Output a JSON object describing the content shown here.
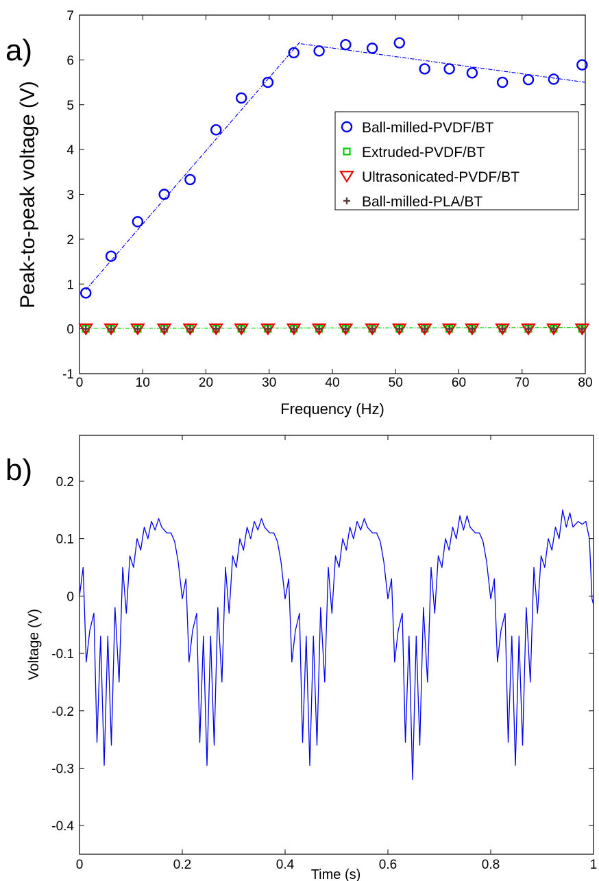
{
  "chart_data": [
    {
      "panel_label": "a)",
      "type": "scatter",
      "xlabel": "Frequency (Hz)",
      "ylabel": "Peak-to-peak voltage (V)",
      "xlim": [
        0,
        80
      ],
      "ylim": [
        -1,
        7
      ],
      "xticks": [
        "0",
        "10",
        "20",
        "30",
        "40",
        "50",
        "60",
        "70",
        "80"
      ],
      "yticks": [
        "-1",
        "0",
        "1",
        "2",
        "3",
        "4",
        "5",
        "6",
        "7"
      ],
      "x": [
        1,
        5,
        9.2,
        13.4,
        17.5,
        21.6,
        25.6,
        29.8,
        33.9,
        37.9,
        42.1,
        46.3,
        50.6,
        54.6,
        58.5,
        62.1,
        66.9,
        71,
        75,
        79.5
      ],
      "legend_position": "center-right",
      "series": [
        {
          "name": "Ball-milled-PVDF/BT",
          "marker": "circle",
          "color": "#0000ee",
          "values": [
            0.8,
            1.62,
            2.39,
            3.0,
            3.33,
            4.44,
            5.15,
            5.5,
            6.16,
            6.2,
            6.34,
            6.26,
            6.38,
            5.8,
            5.8,
            5.71,
            5.5,
            5.56,
            5.57,
            5.89
          ]
        },
        {
          "name": "Extruded-PVDF/BT",
          "marker": "square",
          "color": "#00cc00",
          "values": [
            0,
            0,
            0,
            0,
            0,
            0,
            0,
            0,
            0,
            0,
            0,
            0,
            0,
            0,
            0,
            0,
            0,
            0,
            0,
            0
          ]
        },
        {
          "name": "Ultrasonicated-PVDF/BT",
          "marker": "triangle-down",
          "color": "#ee0000",
          "values": [
            0,
            0,
            0,
            0,
            0,
            0,
            0,
            0,
            0,
            0,
            0,
            0,
            0,
            0,
            0,
            0,
            0,
            0,
            0,
            0
          ]
        },
        {
          "name": "Ball-milled-PLA/BT",
          "marker": "plus",
          "color": "#5a3a3a",
          "values": [
            0,
            0,
            0,
            0,
            0,
            0,
            0,
            0,
            0,
            0,
            0,
            0,
            0,
            0,
            0,
            0,
            0,
            0,
            0,
            0
          ]
        }
      ],
      "fit_lines": [
        {
          "color": "#0000ee",
          "points": [
            [
              1,
              0.87
            ],
            [
              35,
              6.42
            ]
          ]
        },
        {
          "color": "#0000ee",
          "points": [
            [
              35,
              6.36
            ],
            [
              80,
              5.5
            ]
          ]
        },
        {
          "color": "#00cc00",
          "points": [
            [
              1,
              0.01
            ],
            [
              80,
              0.03
            ]
          ]
        }
      ]
    },
    {
      "panel_label": "b)",
      "type": "line",
      "xlabel": "Time (s)",
      "ylabel": "Voltage (V)",
      "xlim": [
        0,
        1
      ],
      "ylim": [
        -0.45,
        0.28
      ],
      "xticks": [
        "0",
        "0.2",
        "0.4",
        "0.6",
        "0.8",
        "1"
      ],
      "yticks": [
        "0.2",
        "0.1",
        "0",
        "-0.1",
        "-0.2",
        "-0.3",
        "-0.4"
      ],
      "series": [
        {
          "color": "#0000ee",
          "points": [
            [
              0,
              0
            ],
            [
              0.007,
              0.05
            ],
            [
              0.013,
              -0.115
            ],
            [
              0.02,
              -0.06
            ],
            [
              0.028,
              -0.03
            ],
            [
              0.034,
              -0.255
            ],
            [
              0.041,
              -0.07
            ],
            [
              0.048,
              -0.295
            ],
            [
              0.055,
              -0.07
            ],
            [
              0.062,
              -0.26
            ],
            [
              0.069,
              -0.02
            ],
            [
              0.077,
              -0.15
            ],
            [
              0.084,
              0.05
            ],
            [
              0.091,
              -0.03
            ],
            [
              0.098,
              0.07
            ],
            [
              0.105,
              0.05
            ],
            [
              0.112,
              0.1
            ],
            [
              0.119,
              0.08
            ],
            [
              0.126,
              0.12
            ],
            [
              0.133,
              0.1
            ],
            [
              0.14,
              0.13
            ],
            [
              0.147,
              0.115
            ],
            [
              0.154,
              0.135
            ],
            [
              0.16,
              0.12
            ],
            [
              0.17,
              0.11
            ],
            [
              0.178,
              0.11
            ],
            [
              0.185,
              0.095
            ],
            [
              0.192,
              0.06
            ],
            [
              0.2,
              -0.005
            ],
            [
              0.207,
              0.03
            ],
            [
              0.213,
              -0.115
            ],
            [
              0.22,
              -0.06
            ],
            [
              0.228,
              -0.03
            ],
            [
              0.234,
              -0.255
            ],
            [
              0.241,
              -0.07
            ],
            [
              0.248,
              -0.295
            ],
            [
              0.255,
              -0.07
            ],
            [
              0.262,
              -0.26
            ],
            [
              0.269,
              -0.02
            ],
            [
              0.277,
              -0.15
            ],
            [
              0.284,
              0.05
            ],
            [
              0.291,
              -0.03
            ],
            [
              0.298,
              0.07
            ],
            [
              0.305,
              0.05
            ],
            [
              0.312,
              0.1
            ],
            [
              0.319,
              0.08
            ],
            [
              0.326,
              0.12
            ],
            [
              0.333,
              0.1
            ],
            [
              0.34,
              0.13
            ],
            [
              0.347,
              0.115
            ],
            [
              0.354,
              0.135
            ],
            [
              0.36,
              0.12
            ],
            [
              0.37,
              0.11
            ],
            [
              0.378,
              0.11
            ],
            [
              0.385,
              0.095
            ],
            [
              0.392,
              0.06
            ],
            [
              0.4,
              -0.005
            ],
            [
              0.407,
              0.03
            ],
            [
              0.413,
              -0.115
            ],
            [
              0.42,
              -0.06
            ],
            [
              0.428,
              -0.03
            ],
            [
              0.434,
              -0.255
            ],
            [
              0.441,
              -0.07
            ],
            [
              0.448,
              -0.295
            ],
            [
              0.455,
              -0.07
            ],
            [
              0.462,
              -0.26
            ],
            [
              0.469,
              -0.02
            ],
            [
              0.477,
              -0.15
            ],
            [
              0.484,
              0.05
            ],
            [
              0.491,
              -0.03
            ],
            [
              0.498,
              0.07
            ],
            [
              0.505,
              0.05
            ],
            [
              0.512,
              0.1
            ],
            [
              0.519,
              0.08
            ],
            [
              0.526,
              0.12
            ],
            [
              0.533,
              0.1
            ],
            [
              0.54,
              0.13
            ],
            [
              0.547,
              0.115
            ],
            [
              0.554,
              0.135
            ],
            [
              0.56,
              0.12
            ],
            [
              0.57,
              0.11
            ],
            [
              0.578,
              0.11
            ],
            [
              0.585,
              0.095
            ],
            [
              0.592,
              0.06
            ],
            [
              0.6,
              -0.005
            ],
            [
              0.607,
              0.03
            ],
            [
              0.613,
              -0.115
            ],
            [
              0.62,
              -0.06
            ],
            [
              0.628,
              -0.03
            ],
            [
              0.634,
              -0.255
            ],
            [
              0.641,
              -0.07
            ],
            [
              0.648,
              -0.32
            ],
            [
              0.655,
              -0.07
            ],
            [
              0.662,
              -0.26
            ],
            [
              0.669,
              -0.02
            ],
            [
              0.677,
              -0.15
            ],
            [
              0.684,
              0.05
            ],
            [
              0.691,
              -0.03
            ],
            [
              0.698,
              0.07
            ],
            [
              0.705,
              0.05
            ],
            [
              0.712,
              0.1
            ],
            [
              0.719,
              0.08
            ],
            [
              0.726,
              0.12
            ],
            [
              0.733,
              0.1
            ],
            [
              0.74,
              0.14
            ],
            [
              0.747,
              0.115
            ],
            [
              0.754,
              0.14
            ],
            [
              0.76,
              0.12
            ],
            [
              0.77,
              0.11
            ],
            [
              0.778,
              0.11
            ],
            [
              0.785,
              0.095
            ],
            [
              0.792,
              0.06
            ],
            [
              0.8,
              -0.005
            ],
            [
              0.807,
              0.03
            ],
            [
              0.813,
              -0.115
            ],
            [
              0.82,
              -0.06
            ],
            [
              0.828,
              -0.03
            ],
            [
              0.834,
              -0.255
            ],
            [
              0.841,
              -0.07
            ],
            [
              0.848,
              -0.295
            ],
            [
              0.855,
              -0.07
            ],
            [
              0.862,
              -0.26
            ],
            [
              0.869,
              -0.02
            ],
            [
              0.877,
              -0.15
            ],
            [
              0.884,
              0.05
            ],
            [
              0.891,
              -0.03
            ],
            [
              0.898,
              0.07
            ],
            [
              0.905,
              0.05
            ],
            [
              0.912,
              0.1
            ],
            [
              0.919,
              0.08
            ],
            [
              0.926,
              0.12
            ],
            [
              0.933,
              0.1
            ],
            [
              0.94,
              0.15
            ],
            [
              0.947,
              0.12
            ],
            [
              0.954,
              0.145
            ],
            [
              0.96,
              0.12
            ],
            [
              0.97,
              0.13
            ],
            [
              0.978,
              0.125
            ],
            [
              0.985,
              0.13
            ],
            [
              0.992,
              0.1
            ],
            [
              0.997,
              -0.005
            ],
            [
              1,
              -0.015
            ]
          ]
        }
      ]
    }
  ]
}
